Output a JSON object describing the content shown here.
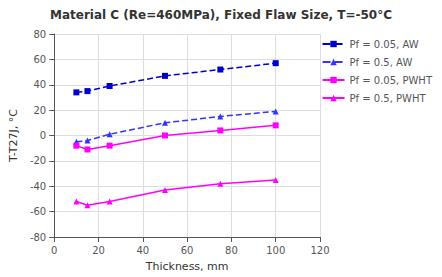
{
  "chart_data": {
    "type": "line",
    "title": "Material C (Re=460MPa), Fixed Flaw Size, T=-50°C",
    "xlabel": "Thickness, mm",
    "ylabel": "T-T27J, °C",
    "x": [
      10,
      15,
      25,
      50,
      75,
      100
    ],
    "series": [
      {
        "name": "Pf = 0.05, AW",
        "color": "#0000CC",
        "marker": "square",
        "line_style": "dashed",
        "values": [
          34,
          35,
          39,
          47,
          52,
          57
        ]
      },
      {
        "name": "Pf = 0.5, AW",
        "color": "#3333FF",
        "marker": "triangle",
        "line_style": "dashed",
        "values": [
          -5,
          -4,
          1,
          10,
          15,
          19
        ]
      },
      {
        "name": "Pf = 0.05, PWHT",
        "color": "#FF00FF",
        "marker": "square",
        "line_style": "solid",
        "values": [
          -8,
          -11,
          -8,
          0,
          4,
          8
        ]
      },
      {
        "name": "Pf = 0.5, PWHT",
        "color": "#FF00FF",
        "marker": "triangle",
        "line_style": "solid",
        "values": [
          -52,
          -55,
          -52,
          -43,
          -38,
          -35
        ]
      }
    ],
    "xlim": [
      0,
      120
    ],
    "ylim": [
      -80,
      80
    ],
    "xticks": [
      0,
      20,
      40,
      60,
      80,
      100,
      120
    ],
    "yticks": [
      -80,
      -60,
      -40,
      -20,
      0,
      20,
      40,
      60,
      80
    ],
    "grid": true,
    "legend": "upper right"
  }
}
